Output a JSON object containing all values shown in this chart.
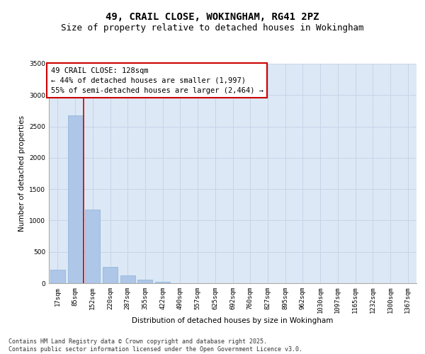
{
  "title_line1": "49, CRAIL CLOSE, WOKINGHAM, RG41 2PZ",
  "title_line2": "Size of property relative to detached houses in Wokingham",
  "xlabel": "Distribution of detached houses by size in Wokingham",
  "ylabel": "Number of detached properties",
  "categories": [
    "17sqm",
    "85sqm",
    "152sqm",
    "220sqm",
    "287sqm",
    "355sqm",
    "422sqm",
    "490sqm",
    "557sqm",
    "625sqm",
    "692sqm",
    "760sqm",
    "827sqm",
    "895sqm",
    "962sqm",
    "1030sqm",
    "1097sqm",
    "1165sqm",
    "1232sqm",
    "1300sqm",
    "1367sqm"
  ],
  "values": [
    220,
    2680,
    1170,
    260,
    120,
    55,
    20,
    0,
    0,
    0,
    0,
    0,
    0,
    0,
    0,
    0,
    0,
    0,
    0,
    0,
    0
  ],
  "bar_color": "#aec6e8",
  "bar_edge_color": "#8ab4d8",
  "grid_color": "#c8d4e8",
  "background_color": "#dce8f5",
  "vline_x_index": 1.5,
  "vline_color": "#cc0000",
  "annotation_text": "49 CRAIL CLOSE: 128sqm\n← 44% of detached houses are smaller (1,997)\n55% of semi-detached houses are larger (2,464) →",
  "annotation_box_color": "#ffffff",
  "annotation_box_edge_color": "#cc0000",
  "ylim": [
    0,
    3500
  ],
  "yticks": [
    0,
    500,
    1000,
    1500,
    2000,
    2500,
    3000,
    3500
  ],
  "footer_text": "Contains HM Land Registry data © Crown copyright and database right 2025.\nContains public sector information licensed under the Open Government Licence v3.0.",
  "title_fontsize": 10,
  "subtitle_fontsize": 9,
  "axis_label_fontsize": 7.5,
  "tick_fontsize": 6.5,
  "annotation_fontsize": 7.5,
  "footer_fontsize": 6.0
}
